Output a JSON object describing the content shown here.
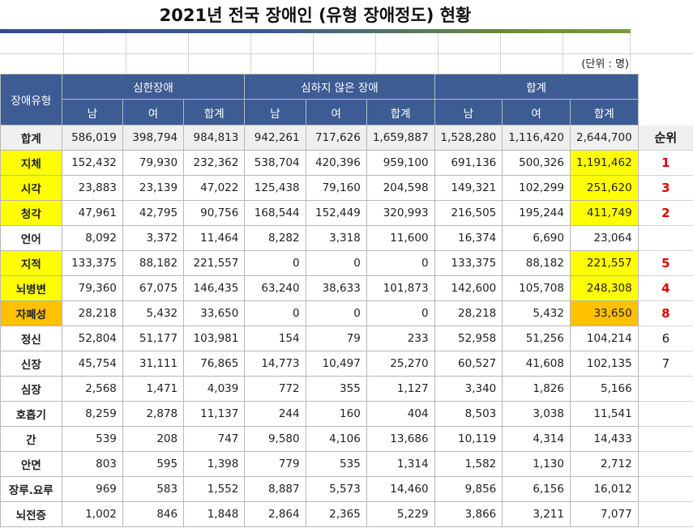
{
  "title": "2021년 전국 장애인 (유형 장애정도) 현황",
  "unit": "(단위 : 명)",
  "header": {
    "type_col": "장애유형",
    "groups": [
      "심한장애",
      "심하지 않은 장애",
      "합계"
    ],
    "sub": [
      "남",
      "여",
      "합계",
      "남",
      "여",
      "합계",
      "남",
      "여",
      "합계"
    ],
    "rank": "순위"
  },
  "rows": [
    {
      "type": "합계",
      "values": [
        "586,019",
        "398,794",
        "984,813",
        "942,261",
        "717,626",
        "1,659,887",
        "1,528,280",
        "1,116,420",
        "2,644,700"
      ],
      "rank": ""
    },
    {
      "type": "지체",
      "values": [
        "152,432",
        "79,930",
        "232,362",
        "538,704",
        "420,396",
        "959,100",
        "691,136",
        "500,326",
        "1,191,462"
      ],
      "rank": "1"
    },
    {
      "type": "시각",
      "values": [
        "23,883",
        "23,139",
        "47,022",
        "125,438",
        "79,160",
        "204,598",
        "149,321",
        "102,299",
        "251,620"
      ],
      "rank": "3"
    },
    {
      "type": "청각",
      "values": [
        "47,961",
        "42,795",
        "90,756",
        "168,544",
        "152,449",
        "320,993",
        "216,505",
        "195,244",
        "411,749"
      ],
      "rank": "2"
    },
    {
      "type": "언어",
      "values": [
        "8,092",
        "3,372",
        "11,464",
        "8,282",
        "3,318",
        "11,600",
        "16,374",
        "6,690",
        "23,064"
      ],
      "rank": ""
    },
    {
      "type": "지적",
      "values": [
        "133,375",
        "88,182",
        "221,557",
        "0",
        "0",
        "0",
        "133,375",
        "88,182",
        "221,557"
      ],
      "rank": "5"
    },
    {
      "type": "뇌병변",
      "values": [
        "79,360",
        "67,075",
        "146,435",
        "63,240",
        "38,633",
        "101,873",
        "142,600",
        "105,708",
        "248,308"
      ],
      "rank": "4"
    },
    {
      "type": "자폐성",
      "values": [
        "28,218",
        "5,432",
        "33,650",
        "0",
        "0",
        "0",
        "28,218",
        "5,432",
        "33,650"
      ],
      "rank": "8"
    },
    {
      "type": "정신",
      "values": [
        "52,804",
        "51,177",
        "103,981",
        "154",
        "79",
        "233",
        "52,958",
        "51,256",
        "104,214"
      ],
      "rank": "6"
    },
    {
      "type": "신장",
      "values": [
        "45,754",
        "31,111",
        "76,865",
        "14,773",
        "10,497",
        "25,270",
        "60,527",
        "41,608",
        "102,135"
      ],
      "rank": "7"
    },
    {
      "type": "심장",
      "values": [
        "2,568",
        "1,471",
        "4,039",
        "772",
        "355",
        "1,127",
        "3,340",
        "1,826",
        "5,166"
      ],
      "rank": ""
    },
    {
      "type": "호흡기",
      "values": [
        "8,259",
        "2,878",
        "11,137",
        "244",
        "160",
        "404",
        "8,503",
        "3,038",
        "11,541"
      ],
      "rank": ""
    },
    {
      "type": "간",
      "values": [
        "539",
        "208",
        "747",
        "9,580",
        "4,106",
        "13,686",
        "10,119",
        "4,314",
        "14,433"
      ],
      "rank": ""
    },
    {
      "type": "안면",
      "values": [
        "803",
        "595",
        "1,398",
        "779",
        "535",
        "1,314",
        "1,582",
        "1,130",
        "2,712"
      ],
      "rank": ""
    },
    {
      "type": "장루.요루",
      "values": [
        "969",
        "583",
        "1,552",
        "8,887",
        "5,573",
        "14,460",
        "9,856",
        "6,156",
        "16,012"
      ],
      "rank": ""
    },
    {
      "type": "뇌전증",
      "values": [
        "1,002",
        "846",
        "1,848",
        "2,864",
        "2,365",
        "5,229",
        "3,866",
        "3,211",
        "7,077"
      ],
      "rank": ""
    }
  ],
  "highlight_colors": {
    "yellow": "#ffff00",
    "orange": "#ffc000",
    "header": "#3d5c94",
    "rank_red": "#e00000"
  }
}
